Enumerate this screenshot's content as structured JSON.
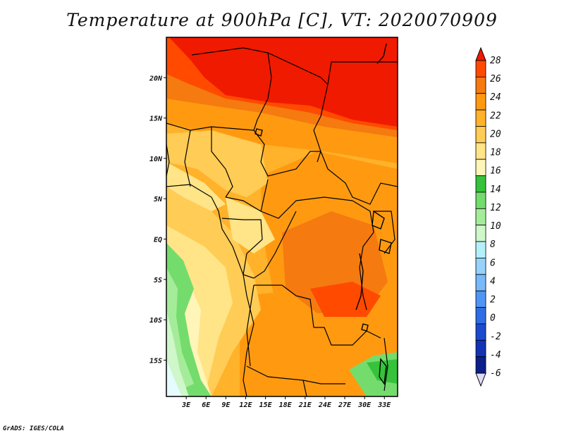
{
  "title": "Temperature at 900hPa [C], VT: 2020070909",
  "footer": "GrADS: IGES/COLA",
  "map": {
    "lat_labels": [
      {
        "text": "20N",
        "lat": 20
      },
      {
        "text": "15N",
        "lat": 15
      },
      {
        "text": "10N",
        "lat": 10
      },
      {
        "text": "5N",
        "lat": 5
      },
      {
        "text": "EQ",
        "lat": 0
      },
      {
        "text": "5S",
        "lat": -5
      },
      {
        "text": "10S",
        "lat": -10
      },
      {
        "text": "15S",
        "lat": -15
      }
    ],
    "lon_labels": [
      {
        "text": "3E",
        "lon": 3
      },
      {
        "text": "6E",
        "lon": 6
      },
      {
        "text": "9E",
        "lon": 9
      },
      {
        "text": "12E",
        "lon": 12
      },
      {
        "text": "15E",
        "lon": 15
      },
      {
        "text": "18E",
        "lon": 18
      },
      {
        "text": "21E",
        "lon": 21
      },
      {
        "text": "24E",
        "lon": 24
      },
      {
        "text": "27E",
        "lon": 27
      },
      {
        "text": "30E",
        "lon": 30
      },
      {
        "text": "33E",
        "lon": 33
      }
    ],
    "lat_range": [
      -19.5,
      25
    ],
    "lon_range": [
      0,
      35
    ]
  },
  "colorbar": {
    "labels": [
      "28",
      "26",
      "24",
      "22",
      "20",
      "18",
      "16",
      "14",
      "12",
      "10",
      "8",
      "6",
      "4",
      "2",
      "0",
      "-2",
      "-4",
      "-6"
    ],
    "colors": [
      "#f01a00",
      "#ff4a00",
      "#f57a10",
      "#ff9a10",
      "#ffb22a",
      "#ffcc55",
      "#ffe488",
      "#fff5b8",
      "#36c23a",
      "#74dc6c",
      "#a5ec9a",
      "#cff7ca",
      "#b4f0fa",
      "#96d2fa",
      "#78b9fa",
      "#4f95f3",
      "#2f6de6",
      "#1a4ad0",
      "#1233b5",
      "#0b1f8a",
      "#e1dcf5"
    ]
  }
}
